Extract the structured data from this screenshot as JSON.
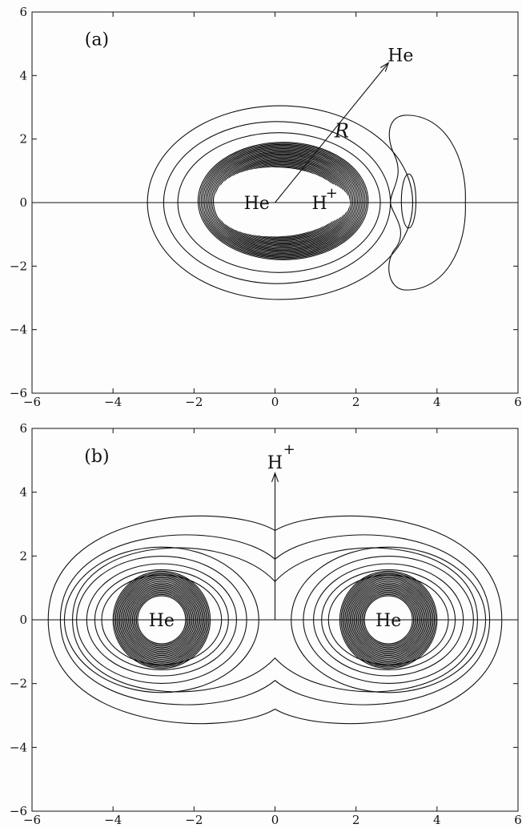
{
  "chart_data": [
    {
      "type": "contour",
      "panel_label": "(a)",
      "xlim": [
        -6,
        6
      ],
      "ylim": [
        -6,
        6
      ],
      "x_ticks": [
        -6,
        -4,
        -2,
        0,
        2,
        4,
        6
      ],
      "y_ticks": [
        -6,
        -4,
        -2,
        0,
        2,
        4,
        6
      ],
      "atoms": [
        {
          "name": "He",
          "x": 0,
          "y": 0
        },
        {
          "name": "H",
          "charge": "+",
          "x": 1.5,
          "y": 0
        }
      ],
      "arrow": {
        "label": "R",
        "from": [
          0,
          0
        ],
        "to": [
          2.8,
          4.4
        ],
        "target": "He"
      },
      "dense_ring_region": {
        "x_range": [
          -1.9,
          2.3
        ],
        "y_range": [
          -1.8,
          1.9
        ]
      },
      "outer_contours_x_extent": [
        [
          -3.15,
          3.4
        ],
        [
          -2.75,
          2.85
        ],
        [
          -2.4,
          2.6
        ]
      ],
      "right_lobe": {
        "x_range": [
          2.9,
          4.7
        ],
        "y_range": [
          -2.8,
          2.8
        ]
      },
      "small_island": {
        "x_center": 3.3,
        "y_range": [
          -0.8,
          0.9
        ]
      }
    },
    {
      "type": "contour",
      "panel_label": "(b)",
      "xlim": [
        -6,
        6
      ],
      "ylim": [
        -6,
        6
      ],
      "x_ticks": [
        -6,
        -4,
        -2,
        0,
        2,
        4,
        6
      ],
      "y_ticks": [
        -6,
        -4,
        -2,
        0,
        2,
        4,
        6
      ],
      "atoms": [
        {
          "name": "He",
          "x": -2.8,
          "y": 0
        },
        {
          "name": "He",
          "x": 2.8,
          "y": 0
        }
      ],
      "arrow": {
        "from": [
          0,
          0
        ],
        "to": [
          0,
          4.6
        ],
        "target": "H",
        "target_charge": "+"
      },
      "outer_contour_y_extent": [
        [
          -3.5,
          3.5
        ],
        [
          -3.0,
          2.9
        ]
      ],
      "neck_y": [
        [
          -2.7,
          2.8
        ],
        [
          -1.9,
          1.9
        ],
        [
          -1.2,
          1.2
        ]
      ],
      "dense_ring_region": [
        {
          "x_center": -2.8,
          "radius": 1.2
        },
        {
          "x_center": 2.8,
          "radius": 1.2
        }
      ]
    }
  ]
}
